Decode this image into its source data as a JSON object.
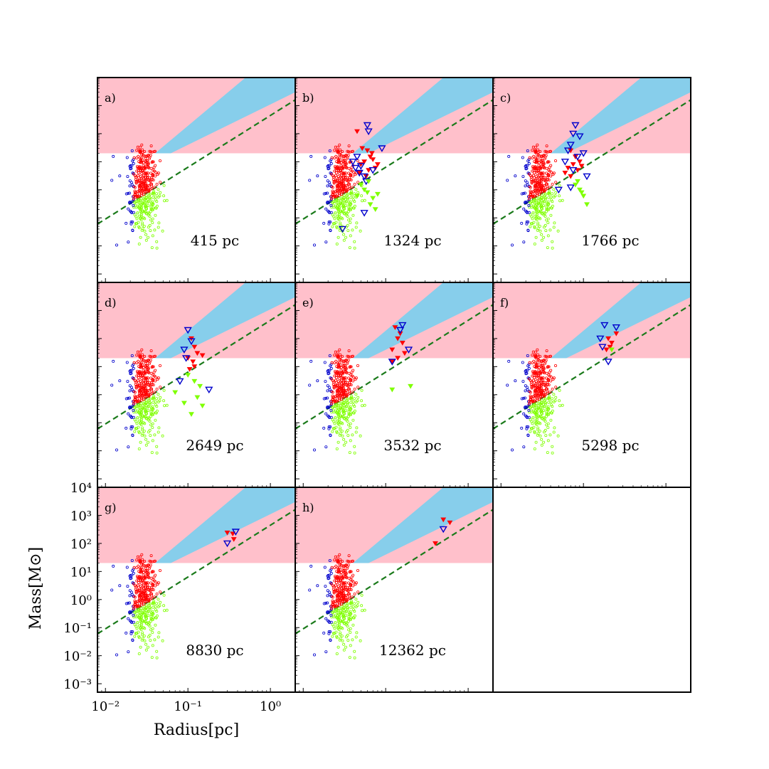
{
  "colors": {
    "background": "#ffffff",
    "pink_region": "#ffc0cb",
    "blue_region": "#87ceeb",
    "dashed_line": "#1a7a1a",
    "core_red": "#ff0000",
    "core_blue": "#0000cc",
    "core_green": "#7fff00",
    "axes": "#000000"
  },
  "chart_data": {
    "type": "scatter",
    "x_scale": "log",
    "y_scale": "log",
    "xlim": [
      0.008,
      2.0
    ],
    "ylim": [
      0.0005,
      10000
    ],
    "xlabel": "Radius[pc]",
    "ylabel": "Mass[M⊙]",
    "x_ticks": [
      0.01,
      0.1,
      1
    ],
    "x_tick_labels": [
      "10⁻²",
      "10⁻¹",
      "10⁰"
    ],
    "y_ticks": [
      0.001,
      0.01,
      0.1,
      1,
      10,
      100,
      1000,
      10000
    ],
    "y_tick_labels": [
      "10⁻³",
      "10⁻²",
      "10⁻¹",
      "10⁰",
      "10¹",
      "10²",
      "10³",
      "10⁴"
    ],
    "grid": false,
    "legend": "none",
    "regions": {
      "pink": {
        "lower_mass": 20,
        "upper_mass": 10000
      },
      "blue": {
        "lower_edge": [
          [
            0.062,
            20
          ],
          [
            2.0,
            3000
          ]
        ],
        "upper_edge": [
          [
            0.04,
            20
          ],
          [
            0.5,
            10000
          ]
        ]
      }
    },
    "dashed_line": [
      [
        0.008,
        0.06
      ],
      [
        2.0,
        1600
      ]
    ],
    "panels": [
      {
        "label": "a)",
        "distance": "415 pc",
        "resolved": []
      },
      {
        "label": "b)",
        "distance": "1324 pc",
        "resolved": [
          {
            "color": "red",
            "filled": true,
            "x": 0.045,
            "y": 120
          },
          {
            "color": "red",
            "filled": true,
            "x": 0.052,
            "y": 30
          },
          {
            "color": "red",
            "filled": true,
            "x": 0.06,
            "y": 25
          },
          {
            "color": "red",
            "filled": true,
            "x": 0.065,
            "y": 15
          },
          {
            "color": "red",
            "filled": true,
            "x": 0.055,
            "y": 10
          },
          {
            "color": "red",
            "filled": true,
            "x": 0.07,
            "y": 12
          },
          {
            "color": "red",
            "filled": true,
            "x": 0.05,
            "y": 8
          },
          {
            "color": "red",
            "filled": true,
            "x": 0.075,
            "y": 6
          },
          {
            "color": "red",
            "filled": true,
            "x": 0.062,
            "y": 5
          },
          {
            "color": "red",
            "filled": true,
            "x": 0.048,
            "y": 4
          },
          {
            "color": "red",
            "filled": true,
            "x": 0.08,
            "y": 8
          },
          {
            "color": "red",
            "filled": true,
            "x": 0.068,
            "y": 20
          },
          {
            "color": "red",
            "filled": true,
            "x": 0.058,
            "y": 3
          },
          {
            "color": "blue",
            "filled": false,
            "x": 0.06,
            "y": 200
          },
          {
            "color": "blue",
            "filled": false,
            "x": 0.062,
            "y": 120
          },
          {
            "color": "blue",
            "filled": false,
            "x": 0.09,
            "y": 30
          },
          {
            "color": "blue",
            "filled": false,
            "x": 0.04,
            "y": 10
          },
          {
            "color": "blue",
            "filled": false,
            "x": 0.043,
            "y": 6
          },
          {
            "color": "blue",
            "filled": false,
            "x": 0.048,
            "y": 4
          },
          {
            "color": "blue",
            "filled": false,
            "x": 0.055,
            "y": 3
          },
          {
            "color": "blue",
            "filled": false,
            "x": 0.05,
            "y": 7
          },
          {
            "color": "blue",
            "filled": false,
            "x": 0.07,
            "y": 5
          },
          {
            "color": "blue",
            "filled": false,
            "x": 0.045,
            "y": 15
          },
          {
            "color": "blue",
            "filled": false,
            "x": 0.058,
            "y": 2
          },
          {
            "color": "blue",
            "filled": false,
            "x": 0.055,
            "y": 0.15
          },
          {
            "color": "blue",
            "filled": false,
            "x": 0.03,
            "y": 0.04
          },
          {
            "color": "green",
            "filled": true,
            "x": 0.05,
            "y": 1.5
          },
          {
            "color": "green",
            "filled": true,
            "x": 0.06,
            "y": 0.8
          },
          {
            "color": "green",
            "filled": true,
            "x": 0.07,
            "y": 0.5
          },
          {
            "color": "green",
            "filled": true,
            "x": 0.065,
            "y": 0.3
          },
          {
            "color": "green",
            "filled": true,
            "x": 0.055,
            "y": 1
          },
          {
            "color": "green",
            "filled": true,
            "x": 0.075,
            "y": 0.2
          },
          {
            "color": "green",
            "filled": true,
            "x": 0.045,
            "y": 0.6
          },
          {
            "color": "green",
            "filled": true,
            "x": 0.062,
            "y": 2
          },
          {
            "color": "green",
            "filled": true,
            "x": 0.08,
            "y": 0.7
          }
        ]
      },
      {
        "label": "c)",
        "distance": "1766 pc",
        "resolved": [
          {
            "color": "red",
            "filled": true,
            "x": 0.07,
            "y": 25
          },
          {
            "color": "red",
            "filled": true,
            "x": 0.08,
            "y": 15
          },
          {
            "color": "red",
            "filled": true,
            "x": 0.09,
            "y": 10
          },
          {
            "color": "red",
            "filled": true,
            "x": 0.075,
            "y": 8
          },
          {
            "color": "red",
            "filled": true,
            "x": 0.065,
            "y": 6
          },
          {
            "color": "red",
            "filled": true,
            "x": 0.085,
            "y": 5
          },
          {
            "color": "red",
            "filled": true,
            "x": 0.06,
            "y": 4
          },
          {
            "color": "red",
            "filled": true,
            "x": 0.095,
            "y": 7
          },
          {
            "color": "red",
            "filled": true,
            "x": 0.07,
            "y": 3
          },
          {
            "color": "blue",
            "filled": false,
            "x": 0.08,
            "y": 200
          },
          {
            "color": "blue",
            "filled": false,
            "x": 0.075,
            "y": 100
          },
          {
            "color": "blue",
            "filled": false,
            "x": 0.09,
            "y": 80
          },
          {
            "color": "blue",
            "filled": false,
            "x": 0.07,
            "y": 40
          },
          {
            "color": "blue",
            "filled": false,
            "x": 0.065,
            "y": 25
          },
          {
            "color": "blue",
            "filled": false,
            "x": 0.085,
            "y": 15
          },
          {
            "color": "blue",
            "filled": false,
            "x": 0.06,
            "y": 10
          },
          {
            "color": "blue",
            "filled": false,
            "x": 0.1,
            "y": 20
          },
          {
            "color": "blue",
            "filled": false,
            "x": 0.11,
            "y": 3
          },
          {
            "color": "blue",
            "filled": false,
            "x": 0.05,
            "y": 1
          },
          {
            "color": "blue",
            "filled": false,
            "x": 0.07,
            "y": 1.2
          },
          {
            "color": "blue",
            "filled": false,
            "x": 0.075,
            "y": 5
          },
          {
            "color": "green",
            "filled": true,
            "x": 0.08,
            "y": 1.5
          },
          {
            "color": "green",
            "filled": true,
            "x": 0.09,
            "y": 1
          },
          {
            "color": "green",
            "filled": true,
            "x": 0.1,
            "y": 0.6
          },
          {
            "color": "green",
            "filled": true,
            "x": 0.11,
            "y": 0.3
          },
          {
            "color": "green",
            "filled": true,
            "x": 0.085,
            "y": 2
          },
          {
            "color": "green",
            "filled": true,
            "x": 0.095,
            "y": 0.8
          }
        ]
      },
      {
        "label": "d)",
        "distance": "2649 pc",
        "resolved": [
          {
            "color": "red",
            "filled": true,
            "x": 0.11,
            "y": 100
          },
          {
            "color": "red",
            "filled": true,
            "x": 0.12,
            "y": 50
          },
          {
            "color": "red",
            "filled": true,
            "x": 0.13,
            "y": 30
          },
          {
            "color": "red",
            "filled": true,
            "x": 0.15,
            "y": 25
          },
          {
            "color": "red",
            "filled": true,
            "x": 0.1,
            "y": 20
          },
          {
            "color": "red",
            "filled": true,
            "x": 0.115,
            "y": 15
          },
          {
            "color": "red",
            "filled": true,
            "x": 0.12,
            "y": 10
          },
          {
            "color": "red",
            "filled": true,
            "x": 0.105,
            "y": 8
          },
          {
            "color": "blue",
            "filled": false,
            "x": 0.1,
            "y": 200
          },
          {
            "color": "blue",
            "filled": false,
            "x": 0.11,
            "y": 80
          },
          {
            "color": "blue",
            "filled": false,
            "x": 0.09,
            "y": 40
          },
          {
            "color": "blue",
            "filled": false,
            "x": 0.095,
            "y": 20
          },
          {
            "color": "blue",
            "filled": false,
            "x": 0.08,
            "y": 3
          },
          {
            "color": "blue",
            "filled": false,
            "x": 0.18,
            "y": 1.5
          },
          {
            "color": "green",
            "filled": true,
            "x": 0.1,
            "y": 5
          },
          {
            "color": "green",
            "filled": true,
            "x": 0.12,
            "y": 3
          },
          {
            "color": "green",
            "filled": true,
            "x": 0.14,
            "y": 2
          },
          {
            "color": "green",
            "filled": true,
            "x": 0.07,
            "y": 1.2
          },
          {
            "color": "green",
            "filled": true,
            "x": 0.13,
            "y": 0.8
          },
          {
            "color": "green",
            "filled": true,
            "x": 0.15,
            "y": 0.4
          },
          {
            "color": "green",
            "filled": true,
            "x": 0.11,
            "y": 0.2
          },
          {
            "color": "green",
            "filled": true,
            "x": 0.09,
            "y": 0.5
          }
        ]
      },
      {
        "label": "e)",
        "distance": "3532 pc",
        "resolved": [
          {
            "color": "red",
            "filled": true,
            "x": 0.13,
            "y": 250
          },
          {
            "color": "red",
            "filled": true,
            "x": 0.15,
            "y": 150
          },
          {
            "color": "red",
            "filled": true,
            "x": 0.14,
            "y": 100
          },
          {
            "color": "red",
            "filled": true,
            "x": 0.16,
            "y": 70
          },
          {
            "color": "red",
            "filled": true,
            "x": 0.12,
            "y": 40
          },
          {
            "color": "red",
            "filled": true,
            "x": 0.17,
            "y": 30
          },
          {
            "color": "red",
            "filled": true,
            "x": 0.14,
            "y": 20
          },
          {
            "color": "red",
            "filled": true,
            "x": 0.12,
            "y": 15
          },
          {
            "color": "blue",
            "filled": false,
            "x": 0.16,
            "y": 300
          },
          {
            "color": "blue",
            "filled": false,
            "x": 0.15,
            "y": 200
          },
          {
            "color": "blue",
            "filled": false,
            "x": 0.19,
            "y": 40
          },
          {
            "color": "blue",
            "filled": false,
            "x": 0.12,
            "y": 15
          },
          {
            "color": "green",
            "filled": true,
            "x": 0.12,
            "y": 1.5
          },
          {
            "color": "green",
            "filled": true,
            "x": 0.2,
            "y": 2
          }
        ]
      },
      {
        "label": "f)",
        "distance": "5298 pc",
        "resolved": [
          {
            "color": "red",
            "filled": true,
            "x": 0.25,
            "y": 150
          },
          {
            "color": "red",
            "filled": true,
            "x": 0.2,
            "y": 100
          },
          {
            "color": "red",
            "filled": true,
            "x": 0.22,
            "y": 70
          },
          {
            "color": "red",
            "filled": true,
            "x": 0.21,
            "y": 50
          },
          {
            "color": "red",
            "filled": true,
            "x": 0.19,
            "y": 40
          },
          {
            "color": "blue",
            "filled": false,
            "x": 0.18,
            "y": 300
          },
          {
            "color": "blue",
            "filled": false,
            "x": 0.25,
            "y": 250
          },
          {
            "color": "blue",
            "filled": false,
            "x": 0.16,
            "y": 100
          },
          {
            "color": "blue",
            "filled": false,
            "x": 0.17,
            "y": 50
          },
          {
            "color": "blue",
            "filled": false,
            "x": 0.2,
            "y": 15
          },
          {
            "color": "green",
            "filled": true,
            "x": 0.22,
            "y": 40
          }
        ]
      },
      {
        "label": "g)",
        "distance": "8830 pc",
        "resolved": [
          {
            "color": "red",
            "filled": true,
            "x": 0.3,
            "y": 240
          },
          {
            "color": "red",
            "filled": true,
            "x": 0.35,
            "y": 220
          },
          {
            "color": "red",
            "filled": true,
            "x": 0.36,
            "y": 140
          },
          {
            "color": "blue",
            "filled": false,
            "x": 0.38,
            "y": 260
          },
          {
            "color": "blue",
            "filled": false,
            "x": 0.3,
            "y": 100
          }
        ]
      },
      {
        "label": "h)",
        "distance": "12362 pc",
        "resolved": [
          {
            "color": "red",
            "filled": true,
            "x": 0.5,
            "y": 700
          },
          {
            "color": "red",
            "filled": true,
            "x": 0.6,
            "y": 550
          },
          {
            "color": "red",
            "filled": true,
            "x": 0.4,
            "y": 100
          },
          {
            "color": "blue",
            "filled": false,
            "x": 0.5,
            "y": 320
          }
        ]
      }
    ]
  }
}
